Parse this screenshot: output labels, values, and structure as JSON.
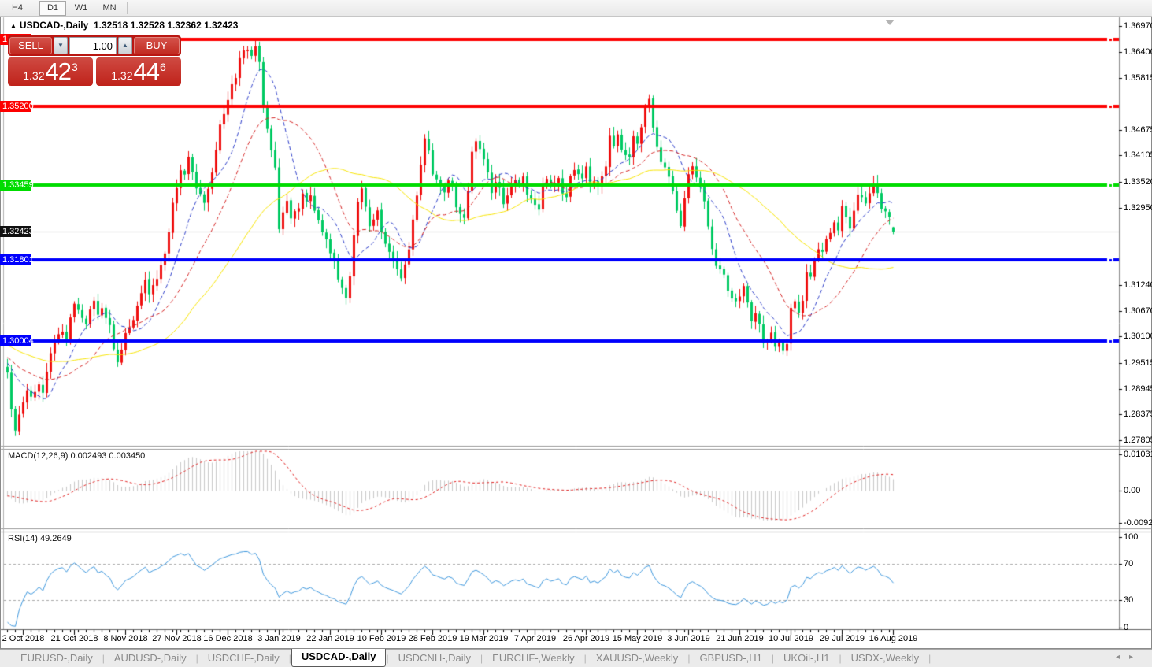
{
  "toolbar": {
    "timeframes": [
      {
        "label": "H4",
        "active": false
      },
      {
        "label": "D1",
        "active": true
      },
      {
        "label": "W1",
        "active": false
      },
      {
        "label": "MN",
        "active": false
      }
    ]
  },
  "window": {
    "title_symbol": "USDCAD-,Daily",
    "title_ohlc": "1.32518 1.32528 1.32362 1.32423",
    "collapse_icon": "▲"
  },
  "trade_panel": {
    "sell_label": "SELL",
    "buy_label": "BUY",
    "volume": "1.00",
    "spin_down": "▼",
    "spin_up": "▲",
    "sell_price": {
      "prefix": "1.32",
      "big": "42",
      "sup": "3"
    },
    "buy_price": {
      "prefix": "1.32",
      "big": "44",
      "sup": "6"
    }
  },
  "chart_data": {
    "type": "candlestick",
    "symbol": "USDCAD-",
    "timeframe": "Daily",
    "current_price": 1.32423,
    "last_candle": {
      "open": 1.32518,
      "high": 1.32528,
      "low": 1.32362,
      "close": 1.32423
    },
    "colors": {
      "up": "#ef1010",
      "down": "#00ca62",
      "ma_fast": "#2b3cc8",
      "ma_mid": "#d42222",
      "ma_slow": "#f7e400",
      "macd_bar": "#c8c8c8",
      "macd_signal": "#e02020",
      "rsi": "#3c96dc",
      "hline_red": "#fd0000",
      "hline_green": "#00dc00",
      "hline_blue": "#0000fd",
      "current_line": "#c4c4c4",
      "badge_current": "#101010"
    },
    "price_axis": {
      "min": 1.27805,
      "max": 1.3697,
      "ticks": [
        "1.36970",
        "1.36400",
        "1.35815",
        "1.34675",
        "1.34105",
        "1.33520",
        "1.32950",
        "1.31240",
        "1.30670",
        "1.30100",
        "1.29515",
        "1.28945",
        "1.28375",
        "1.27805"
      ]
    },
    "hlines": [
      {
        "label": "1.36667",
        "price": 1.36667,
        "color": "#fd0000"
      },
      {
        "label": "1.35200",
        "price": 1.352,
        "color": "#fd0000"
      },
      {
        "label": "1.33459",
        "price": 1.33459,
        "color": "#00dc00"
      },
      {
        "label": "1.31801",
        "price": 1.31801,
        "color": "#0000fd"
      },
      {
        "label": "1.30004",
        "price": 1.30004,
        "color": "#0000fd"
      }
    ],
    "ma_periods": [
      10,
      21,
      45
    ],
    "peak_touch": {
      "px": 322,
      "high": 1.36655
    },
    "close_waypoints": [
      [
        8,
        1.293
      ],
      [
        13,
        1.2845
      ],
      [
        18,
        1.2805
      ],
      [
        23,
        1.2835
      ],
      [
        28,
        1.2865
      ],
      [
        34,
        1.2895
      ],
      [
        40,
        1.2875
      ],
      [
        46,
        1.2905
      ],
      [
        52,
        1.2885
      ],
      [
        58,
        1.293
      ],
      [
        64,
        1.2975
      ],
      [
        70,
        1.3
      ],
      [
        76,
        1.3025
      ],
      [
        82,
        1.3005
      ],
      [
        88,
        1.3055
      ],
      [
        94,
        1.3085
      ],
      [
        100,
        1.3065
      ],
      [
        106,
        1.3035
      ],
      [
        112,
        1.3065
      ],
      [
        118,
        1.3085
      ],
      [
        124,
        1.3055
      ],
      [
        130,
        1.3075
      ],
      [
        136,
        1.3035
      ],
      [
        142,
        1.2985
      ],
      [
        148,
        1.2955
      ],
      [
        154,
        1.2985
      ],
      [
        160,
        1.3015
      ],
      [
        166,
        1.3045
      ],
      [
        172,
        1.3075
      ],
      [
        178,
        1.3105
      ],
      [
        184,
        1.3135
      ],
      [
        190,
        1.3105
      ],
      [
        196,
        1.3135
      ],
      [
        202,
        1.3165
      ],
      [
        208,
        1.3195
      ],
      [
        214,
        1.3245
      ],
      [
        220,
        1.3305
      ],
      [
        226,
        1.3375
      ],
      [
        232,
        1.3365
      ],
      [
        238,
        1.3405
      ],
      [
        244,
        1.3375
      ],
      [
        250,
        1.334
      ],
      [
        256,
        1.3305
      ],
      [
        262,
        1.334
      ],
      [
        268,
        1.3375
      ],
      [
        274,
        1.3425
      ],
      [
        280,
        1.3475
      ],
      [
        286,
        1.3535
      ],
      [
        292,
        1.3565
      ],
      [
        298,
        1.3585
      ],
      [
        304,
        1.3625
      ],
      [
        310,
        1.3645
      ],
      [
        316,
        1.3635
      ],
      [
        322,
        1.3655
      ],
      [
        328,
        1.3615
      ],
      [
        334,
        1.3525
      ],
      [
        340,
        1.3465
      ],
      [
        346,
        1.3385
      ],
      [
        352,
        1.3245
      ],
      [
        358,
        1.3285
      ],
      [
        364,
        1.331
      ],
      [
        370,
        1.3275
      ],
      [
        376,
        1.3295
      ],
      [
        382,
        1.3325
      ],
      [
        388,
        1.3305
      ],
      [
        394,
        1.3325
      ],
      [
        400,
        1.3285
      ],
      [
        406,
        1.3245
      ],
      [
        412,
        1.3225
      ],
      [
        418,
        1.3195
      ],
      [
        424,
        1.3175
      ],
      [
        430,
        1.3135
      ],
      [
        436,
        1.3095
      ],
      [
        441,
        1.3145
      ],
      [
        446,
        1.3235
      ],
      [
        451,
        1.3305
      ],
      [
        456,
        1.3335
      ],
      [
        461,
        1.3295
      ],
      [
        466,
        1.3255
      ],
      [
        472,
        1.3265
      ],
      [
        478,
        1.3285
      ],
      [
        484,
        1.3245
      ],
      [
        490,
        1.3215
      ],
      [
        496,
        1.3185
      ],
      [
        502,
        1.3155
      ],
      [
        508,
        1.3135
      ],
      [
        514,
        1.3165
      ],
      [
        519,
        1.3205
      ],
      [
        524,
        1.3265
      ],
      [
        529,
        1.3325
      ],
      [
        534,
        1.339
      ],
      [
        539,
        1.3445
      ],
      [
        544,
        1.3425
      ],
      [
        550,
        1.3365
      ],
      [
        556,
        1.3345
      ],
      [
        562,
        1.3325
      ],
      [
        568,
        1.3355
      ],
      [
        574,
        1.3345
      ],
      [
        580,
        1.3295
      ],
      [
        586,
        1.3275
      ],
      [
        592,
        1.3335
      ],
      [
        598,
        1.3415
      ],
      [
        604,
        1.3445
      ],
      [
        610,
        1.3425
      ],
      [
        616,
        1.3375
      ],
      [
        622,
        1.3325
      ],
      [
        628,
        1.3355
      ],
      [
        634,
        1.334
      ],
      [
        640,
        1.33
      ],
      [
        646,
        1.3345
      ],
      [
        652,
        1.336
      ],
      [
        658,
        1.3345
      ],
      [
        664,
        1.336
      ],
      [
        670,
        1.3325
      ],
      [
        676,
        1.3305
      ],
      [
        682,
        1.329
      ],
      [
        688,
        1.3345
      ],
      [
        694,
        1.336
      ],
      [
        700,
        1.334
      ],
      [
        706,
        1.3365
      ],
      [
        712,
        1.3325
      ],
      [
        718,
        1.3315
      ],
      [
        724,
        1.3365
      ],
      [
        730,
        1.3375
      ],
      [
        736,
        1.336
      ],
      [
        742,
        1.3385
      ],
      [
        748,
        1.3345
      ],
      [
        754,
        1.3355
      ],
      [
        760,
        1.3345
      ],
      [
        766,
        1.339
      ],
      [
        772,
        1.3455
      ],
      [
        778,
        1.3435
      ],
      [
        784,
        1.3455
      ],
      [
        790,
        1.3425
      ],
      [
        796,
        1.3405
      ],
      [
        802,
        1.3455
      ],
      [
        808,
        1.3435
      ],
      [
        814,
        1.3475
      ],
      [
        820,
        1.3515
      ],
      [
        823,
        1.3535
      ],
      [
        828,
        1.3475
      ],
      [
        834,
        1.3425
      ],
      [
        840,
        1.3395
      ],
      [
        846,
        1.3365
      ],
      [
        852,
        1.3335
      ],
      [
        858,
        1.3285
      ],
      [
        862,
        1.3255
      ],
      [
        868,
        1.3315
      ],
      [
        874,
        1.3365
      ],
      [
        880,
        1.3385
      ],
      [
        886,
        1.3345
      ],
      [
        892,
        1.3305
      ],
      [
        898,
        1.3255
      ],
      [
        904,
        1.3205
      ],
      [
        910,
        1.3165
      ],
      [
        916,
        1.3145
      ],
      [
        922,
        1.3115
      ],
      [
        928,
        1.3095
      ],
      [
        934,
        1.3085
      ],
      [
        940,
        1.3095
      ],
      [
        944,
        1.3125
      ],
      [
        948,
        1.3085
      ],
      [
        952,
        1.3045
      ],
      [
        958,
        1.3065
      ],
      [
        964,
        1.3035
      ],
      [
        970,
        1.2995
      ],
      [
        976,
        1.3015
      ],
      [
        982,
        1.299
      ],
      [
        988,
        1.3
      ],
      [
        994,
        1.298
      ],
      [
        1000,
        1.2995
      ],
      [
        1004,
        1.3075
      ],
      [
        1008,
        1.3085
      ],
      [
        1012,
        1.3065
      ],
      [
        1016,
        1.3085
      ],
      [
        1020,
        1.3115
      ],
      [
        1024,
        1.3155
      ],
      [
        1028,
        1.3145
      ],
      [
        1033,
        1.3185
      ],
      [
        1038,
        1.3205
      ],
      [
        1043,
        1.3195
      ],
      [
        1048,
        1.3225
      ],
      [
        1053,
        1.3235
      ],
      [
        1058,
        1.3265
      ],
      [
        1062,
        1.3245
      ],
      [
        1066,
        1.3295
      ],
      [
        1072,
        1.3275
      ],
      [
        1078,
        1.3245
      ],
      [
        1084,
        1.3285
      ],
      [
        1090,
        1.3325
      ],
      [
        1096,
        1.3305
      ],
      [
        1102,
        1.3325
      ],
      [
        1108,
        1.3345
      ],
      [
        1114,
        1.3325
      ],
      [
        1120,
        1.3295
      ],
      [
        1126,
        1.3275
      ],
      [
        1130,
        1.3265
      ],
      [
        1133,
        1.32423
      ]
    ],
    "x_labels": [
      "2 Oct 2018",
      "21 Oct 2018",
      "8 Nov 2018",
      "27 Nov 2018",
      "16 Dec 2018",
      "3 Jan 2019",
      "22 Jan 2019",
      "10 Feb 2019",
      "28 Feb 2019",
      "19 Mar 2019",
      "7 Apr 2019",
      "26 Apr 2019",
      "15 May 2019",
      "3 Jun 2019",
      "21 Jun 2019",
      "10 Jul 2019",
      "29 Jul 2019",
      "16 Aug 2019"
    ],
    "macd": {
      "label": "MACD(12,26,9)",
      "values": "0.002493 0.003450",
      "params": [
        12,
        26,
        9
      ],
      "axis": [
        "0.010311",
        "0.00",
        "-0.009203"
      ],
      "axis_vals": [
        0.010311,
        0,
        -0.009203
      ]
    },
    "rsi": {
      "label": "RSI(14)",
      "value": "49.2649",
      "period": 14,
      "levels": [
        "100",
        "70",
        "30",
        "0"
      ],
      "level_vals": [
        100,
        70,
        30,
        0
      ],
      "dashed": [
        70,
        30
      ]
    }
  },
  "tabs": {
    "items": [
      "EURUSD-,Daily",
      "AUDUSD-,Daily",
      "USDCHF-,Daily",
      "USDCAD-,Daily",
      "USDCNH-,Daily",
      "EURCHF-,Weekly",
      "XAUUSD-,Weekly",
      "GBPUSD-,H1",
      "UKOil-,H1",
      "USDX-,Weekly"
    ],
    "active_index": 3,
    "left_arrow": "◂",
    "right_arrow": "▸"
  }
}
